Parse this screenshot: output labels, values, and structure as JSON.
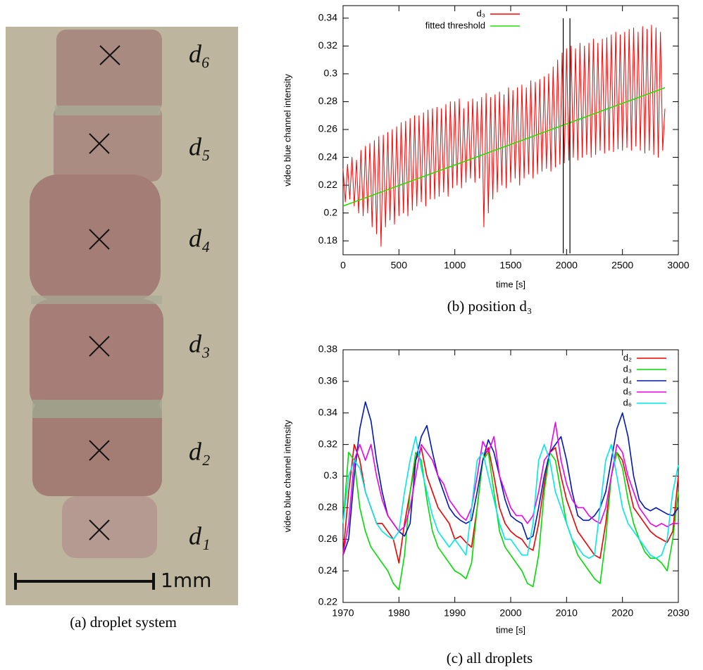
{
  "photo": {
    "caption": "(a) droplet system",
    "labels": [
      "d₆",
      "d₅",
      "d₄",
      "d₃",
      "d₂",
      "d₁"
    ],
    "scale": "1mm"
  },
  "chart_data": [
    {
      "type": "line",
      "caption": "(b) position d₃",
      "xlabel": "time [s]",
      "ylabel": "video blue channel intensity",
      "xlim": [
        0,
        3000
      ],
      "xticks": [
        0,
        500,
        1000,
        1500,
        2000,
        2500,
        3000
      ],
      "ylim": [
        0.17,
        0.349
      ],
      "yticks": [
        0.18,
        0.2,
        0.22,
        0.24,
        0.26,
        0.28,
        0.3,
        0.32,
        0.34
      ],
      "legend": "top-left",
      "vlines": [
        1970,
        2030
      ],
      "vline_color": "#000000",
      "series": [
        {
          "name": "d₃",
          "color": "#ff0000",
          "x": [
            0,
            20,
            40,
            60,
            80,
            100,
            120,
            140,
            160,
            180,
            200,
            220,
            240,
            260,
            280,
            300,
            320,
            340,
            360,
            380,
            400,
            420,
            440,
            460,
            480,
            500,
            520,
            540,
            560,
            580,
            600,
            620,
            640,
            660,
            680,
            700,
            720,
            740,
            760,
            780,
            800,
            820,
            840,
            860,
            880,
            900,
            920,
            940,
            960,
            980,
            1000,
            1020,
            1040,
            1060,
            1080,
            1100,
            1120,
            1140,
            1160,
            1180,
            1200,
            1220,
            1240,
            1260,
            1280,
            1300,
            1320,
            1340,
            1360,
            1380,
            1400,
            1420,
            1440,
            1460,
            1480,
            1500,
            1520,
            1540,
            1560,
            1580,
            1600,
            1620,
            1640,
            1660,
            1680,
            1700,
            1720,
            1740,
            1760,
            1780,
            1800,
            1820,
            1840,
            1860,
            1880,
            1900,
            1920,
            1940,
            1960,
            1980,
            2000,
            2020,
            2040,
            2060,
            2080,
            2100,
            2120,
            2140,
            2160,
            2180,
            2200,
            2220,
            2240,
            2260,
            2280,
            2300,
            2320,
            2340,
            2360,
            2380,
            2400,
            2420,
            2440,
            2460,
            2480,
            2500,
            2520,
            2540,
            2560,
            2580,
            2600,
            2620,
            2640,
            2660,
            2680,
            2700,
            2720,
            2740,
            2760,
            2780,
            2800,
            2820,
            2840,
            2860,
            2880
          ],
          "values": [
            0.232,
            0.208,
            0.235,
            0.21,
            0.24,
            0.205,
            0.238,
            0.2,
            0.245,
            0.198,
            0.248,
            0.2,
            0.25,
            0.19,
            0.252,
            0.185,
            0.255,
            0.176,
            0.256,
            0.19,
            0.258,
            0.195,
            0.26,
            0.192,
            0.262,
            0.198,
            0.265,
            0.2,
            0.266,
            0.198,
            0.268,
            0.202,
            0.27,
            0.205,
            0.27,
            0.208,
            0.272,
            0.205,
            0.274,
            0.21,
            0.275,
            0.21,
            0.276,
            0.212,
            0.275,
            0.215,
            0.278,
            0.212,
            0.28,
            0.218,
            0.28,
            0.22,
            0.282,
            0.218,
            0.275,
            0.222,
            0.28,
            0.225,
            0.282,
            0.222,
            0.28,
            0.225,
            0.283,
            0.19,
            0.286,
            0.2,
            0.283,
            0.21,
            0.285,
            0.215,
            0.287,
            0.22,
            0.285,
            0.218,
            0.29,
            0.222,
            0.288,
            0.225,
            0.29,
            0.22,
            0.292,
            0.225,
            0.29,
            0.228,
            0.295,
            0.225,
            0.294,
            0.228,
            0.296,
            0.23,
            0.298,
            0.232,
            0.3,
            0.23,
            0.305,
            0.233,
            0.31,
            0.235,
            0.315,
            0.236,
            0.318,
            0.238,
            0.32,
            0.24,
            0.318,
            0.238,
            0.322,
            0.24,
            0.32,
            0.242,
            0.322,
            0.24,
            0.325,
            0.242,
            0.322,
            0.245,
            0.325,
            0.243,
            0.326,
            0.245,
            0.328,
            0.244,
            0.33,
            0.246,
            0.328,
            0.245,
            0.33,
            0.247,
            0.332,
            0.245,
            0.333,
            0.248,
            0.33,
            0.245,
            0.334,
            0.243,
            0.332,
            0.245,
            0.335,
            0.242,
            0.333,
            0.24,
            0.33,
            0.245,
            0.275
          ]
        },
        {
          "name": "fitted threshold",
          "color": "#22dd00",
          "x": [
            0,
            2880
          ],
          "values": [
            0.205,
            0.29
          ]
        }
      ]
    },
    {
      "type": "line",
      "caption": "(c) all droplets",
      "xlabel": "time [s]",
      "ylabel": "video blue channel intensity",
      "xlim": [
        1970,
        2030
      ],
      "xticks": [
        1970,
        1980,
        1990,
        2000,
        2010,
        2020,
        2030
      ],
      "ylim": [
        0.22,
        0.38
      ],
      "yticks": [
        0.22,
        0.24,
        0.26,
        0.28,
        0.3,
        0.32,
        0.34,
        0.36,
        0.38
      ],
      "legend": "top-right",
      "x": [
        1970,
        1971,
        1972,
        1973,
        1974,
        1975,
        1976,
        1977,
        1978,
        1979,
        1980,
        1981,
        1982,
        1983,
        1984,
        1985,
        1986,
        1987,
        1988,
        1989,
        1990,
        1991,
        1992,
        1993,
        1994,
        1995,
        1996,
        1997,
        1998,
        1999,
        2000,
        2001,
        2002,
        2003,
        2004,
        2005,
        2006,
        2007,
        2008,
        2009,
        2010,
        2011,
        2012,
        2013,
        2014,
        2015,
        2016,
        2017,
        2018,
        2019,
        2020,
        2021,
        2022,
        2023,
        2024,
        2025,
        2026,
        2027,
        2028,
        2029,
        2030
      ],
      "series": [
        {
          "name": "d₂",
          "color": "#ee0000",
          "values": [
            0.25,
            0.29,
            0.32,
            0.31,
            0.29,
            0.28,
            0.27,
            0.27,
            0.265,
            0.26,
            0.245,
            0.27,
            0.29,
            0.31,
            0.318,
            0.3,
            0.29,
            0.28,
            0.275,
            0.27,
            0.26,
            0.262,
            0.258,
            0.255,
            0.28,
            0.31,
            0.318,
            0.3,
            0.28,
            0.27,
            0.265,
            0.262,
            0.26,
            0.255,
            0.253,
            0.27,
            0.295,
            0.315,
            0.318,
            0.3,
            0.285,
            0.275,
            0.265,
            0.26,
            0.255,
            0.25,
            0.248,
            0.27,
            0.3,
            0.315,
            0.31,
            0.295,
            0.28,
            0.275,
            0.27,
            0.265,
            0.262,
            0.26,
            0.258,
            0.265,
            0.3
          ]
        },
        {
          "name": "d₃",
          "color": "#00dd00",
          "values": [
            0.27,
            0.315,
            0.31,
            0.28,
            0.265,
            0.255,
            0.25,
            0.245,
            0.24,
            0.232,
            0.228,
            0.25,
            0.29,
            0.315,
            0.31,
            0.285,
            0.265,
            0.255,
            0.25,
            0.245,
            0.24,
            0.238,
            0.235,
            0.245,
            0.28,
            0.31,
            0.315,
            0.29,
            0.265,
            0.255,
            0.25,
            0.245,
            0.24,
            0.232,
            0.23,
            0.25,
            0.29,
            0.315,
            0.31,
            0.29,
            0.27,
            0.26,
            0.25,
            0.245,
            0.24,
            0.235,
            0.232,
            0.26,
            0.3,
            0.315,
            0.305,
            0.285,
            0.27,
            0.26,
            0.252,
            0.248,
            0.248,
            0.245,
            0.24,
            0.26,
            0.29
          ]
        },
        {
          "name": "d₄",
          "color": "#0018b0",
          "values": [
            0.25,
            0.26,
            0.3,
            0.33,
            0.347,
            0.335,
            0.31,
            0.29,
            0.275,
            0.27,
            0.265,
            0.262,
            0.27,
            0.31,
            0.325,
            0.332,
            0.315,
            0.3,
            0.29,
            0.28,
            0.275,
            0.272,
            0.27,
            0.272,
            0.29,
            0.31,
            0.323,
            0.315,
            0.3,
            0.285,
            0.275,
            0.272,
            0.27,
            0.26,
            0.262,
            0.28,
            0.3,
            0.315,
            0.32,
            0.325,
            0.31,
            0.29,
            0.275,
            0.272,
            0.272,
            0.275,
            0.28,
            0.29,
            0.31,
            0.33,
            0.34,
            0.325,
            0.3,
            0.285,
            0.28,
            0.278,
            0.28,
            0.278,
            0.276,
            0.275,
            0.28
          ]
        },
        {
          "name": "d₅",
          "color": "#ee00ee",
          "values": [
            0.25,
            0.27,
            0.31,
            0.32,
            0.31,
            0.32,
            0.3,
            0.285,
            0.275,
            0.27,
            0.265,
            0.268,
            0.28,
            0.3,
            0.32,
            0.315,
            0.31,
            0.3,
            0.295,
            0.285,
            0.28,
            0.275,
            0.272,
            0.28,
            0.3,
            0.322,
            0.315,
            0.325,
            0.3,
            0.29,
            0.28,
            0.275,
            0.275,
            0.27,
            0.275,
            0.29,
            0.31,
            0.315,
            0.334,
            0.31,
            0.295,
            0.285,
            0.28,
            0.28,
            0.275,
            0.272,
            0.27,
            0.28,
            0.3,
            0.32,
            0.315,
            0.3,
            0.29,
            0.28,
            0.275,
            0.27,
            0.268,
            0.27,
            0.268,
            0.27,
            0.27
          ]
        },
        {
          "name": "d₆",
          "color": "#00e8e8",
          "values": [
            0.27,
            0.3,
            0.31,
            0.305,
            0.29,
            0.28,
            0.27,
            0.265,
            0.262,
            0.26,
            0.265,
            0.29,
            0.31,
            0.325,
            0.305,
            0.29,
            0.275,
            0.265,
            0.26,
            0.255,
            0.26,
            0.255,
            0.25,
            0.28,
            0.31,
            0.315,
            0.3,
            0.285,
            0.27,
            0.26,
            0.26,
            0.255,
            0.25,
            0.25,
            0.27,
            0.31,
            0.32,
            0.31,
            0.29,
            0.28,
            0.27,
            0.26,
            0.255,
            0.25,
            0.248,
            0.25,
            0.28,
            0.31,
            0.32,
            0.3,
            0.28,
            0.27,
            0.265,
            0.26,
            0.255,
            0.25,
            0.248,
            0.25,
            0.26,
            0.29,
            0.307
          ]
        }
      ]
    }
  ]
}
